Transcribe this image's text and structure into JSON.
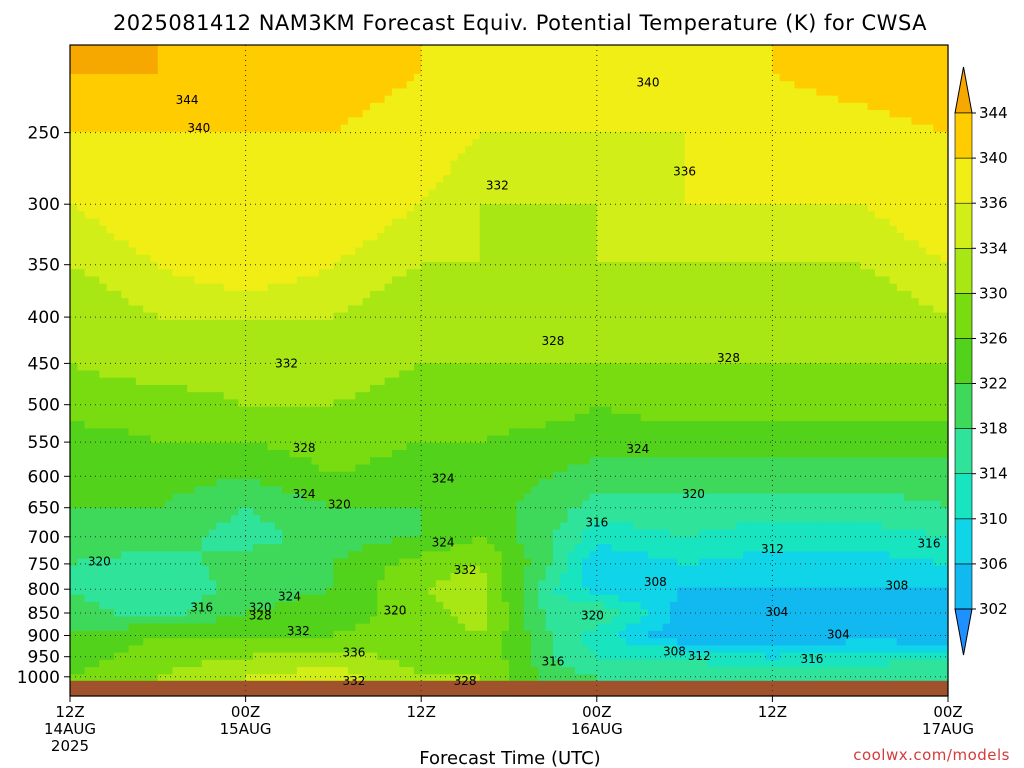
{
  "chart_data": {
    "type": "heatmap",
    "title": "2025081412 NAM3KM Forecast Equiv. Potential Temperature (K) for CWSA",
    "xlabel": "Forecast Time (UTC)",
    "ylabel": "",
    "y_axis": {
      "scale": "log",
      "unit": "hPa",
      "inverted": true,
      "range": [
        1050,
        200
      ],
      "ticks": [
        250,
        300,
        350,
        400,
        450,
        500,
        550,
        600,
        650,
        700,
        750,
        800,
        850,
        900,
        950,
        1000
      ]
    },
    "x_axis": {
      "unit": "hours from 2025-08-14 12Z",
      "range": [
        0,
        60
      ],
      "ticks": [
        {
          "hour": 0,
          "lines": [
            "12Z",
            "14AUG",
            "2025"
          ]
        },
        {
          "hour": 12,
          "lines": [
            "00Z",
            "15AUG"
          ]
        },
        {
          "hour": 24,
          "lines": [
            "12Z"
          ]
        },
        {
          "hour": 36,
          "lines": [
            "00Z",
            "16AUG"
          ]
        },
        {
          "hour": 48,
          "lines": [
            "12Z"
          ]
        },
        {
          "hour": 60,
          "lines": [
            "00Z",
            "17AUG"
          ]
        }
      ]
    },
    "grid": true,
    "colorbar": {
      "unit": "K",
      "levels": [
        302,
        306,
        310,
        314,
        318,
        322,
        326,
        330,
        334,
        336,
        340,
        344
      ],
      "colors": [
        "#1e90ff",
        "#12b9f0",
        "#10d4e8",
        "#18e4c0",
        "#2fe39a",
        "#3ed95a",
        "#52d21a",
        "#78dc10",
        "#a8e614",
        "#d2ee18",
        "#f0ee14",
        "#ffcc00",
        "#f6a800"
      ]
    },
    "surface_band": {
      "label": "ground",
      "color": "#a0522d"
    },
    "estimated_profiles": {
      "levels_hPa": [
        1000,
        950,
        900,
        850,
        800,
        750,
        700,
        650,
        600,
        550,
        500,
        450,
        400,
        350,
        300,
        250,
        215
      ],
      "columns": [
        {
          "hour": 0,
          "theta_e": [
            326,
            324,
            322,
            320,
            318,
            318,
            321,
            322,
            323,
            324,
            328,
            330,
            332,
            334,
            336,
            340,
            344
          ]
        },
        {
          "hour": 6,
          "theta_e": [
            330,
            328,
            326,
            316,
            314,
            316,
            320,
            322,
            324,
            326,
            328,
            332,
            334,
            336,
            338,
            340,
            344
          ]
        },
        {
          "hour": 12,
          "theta_e": [
            334,
            330,
            326,
            322,
            320,
            320,
            316,
            318,
            322,
            326,
            330,
            332,
            334,
            338,
            340,
            340,
            343
          ]
        },
        {
          "hour": 18,
          "theta_e": [
            336,
            332,
            326,
            324,
            322,
            322,
            320,
            322,
            326,
            328,
            330,
            332,
            334,
            336,
            338,
            340,
            342
          ]
        },
        {
          "hour": 24,
          "theta_e": [
            330,
            328,
            328,
            328,
            330,
            328,
            322,
            322,
            324,
            326,
            328,
            330,
            332,
            334,
            336,
            338,
            340
          ]
        },
        {
          "hour": 28,
          "theta_e": [
            330,
            330,
            330,
            332,
            332,
            330,
            326,
            324,
            324,
            326,
            328,
            330,
            332,
            334,
            334,
            336,
            338
          ]
        },
        {
          "hour": 33,
          "theta_e": [
            320,
            318,
            318,
            316,
            314,
            318,
            318,
            320,
            322,
            324,
            328,
            330,
            332,
            332,
            334,
            336,
            338
          ]
        },
        {
          "hour": 36,
          "theta_e": [
            318,
            314,
            312,
            318,
            308,
            306,
            312,
            316,
            320,
            324,
            326,
            330,
            332,
            334,
            334,
            336,
            338
          ]
        },
        {
          "hour": 42,
          "theta_e": [
            316,
            314,
            302,
            304,
            306,
            310,
            314,
            316,
            320,
            324,
            328,
            330,
            332,
            334,
            336,
            336,
            338
          ]
        },
        {
          "hour": 48,
          "theta_e": [
            316,
            310,
            302,
            304,
            306,
            308,
            312,
            316,
            320,
            324,
            328,
            330,
            332,
            334,
            336,
            338,
            340
          ]
        },
        {
          "hour": 54,
          "theta_e": [
            316,
            312,
            304,
            302,
            306,
            308,
            312,
            316,
            320,
            324,
            328,
            330,
            332,
            334,
            336,
            338,
            342
          ]
        },
        {
          "hour": 60,
          "theta_e": [
            318,
            314,
            302,
            302,
            306,
            310,
            314,
            318,
            320,
            324,
            328,
            330,
            334,
            336,
            338,
            340,
            344
          ]
        }
      ]
    },
    "contour_labels": [
      {
        "text": "344",
        "hour": 8,
        "p": 230
      },
      {
        "text": "340",
        "hour": 8.8,
        "p": 247
      },
      {
        "text": "340",
        "hour": 39.5,
        "p": 220
      },
      {
        "text": "336",
        "hour": 42,
        "p": 276
      },
      {
        "text": "332",
        "hour": 29.2,
        "p": 286
      },
      {
        "text": "332",
        "hour": 14.8,
        "p": 450
      },
      {
        "text": "328",
        "hour": 33,
        "p": 425
      },
      {
        "text": "328",
        "hour": 45,
        "p": 444
      },
      {
        "text": "328",
        "hour": 16,
        "p": 558
      },
      {
        "text": "324",
        "hour": 38.8,
        "p": 560
      },
      {
        "text": "324",
        "hour": 25.5,
        "p": 603
      },
      {
        "text": "324",
        "hour": 16,
        "p": 628
      },
      {
        "text": "320",
        "hour": 18.4,
        "p": 645
      },
      {
        "text": "320",
        "hour": 42.6,
        "p": 628
      },
      {
        "text": "316",
        "hour": 36,
        "p": 675
      },
      {
        "text": "312",
        "hour": 48,
        "p": 722
      },
      {
        "text": "316",
        "hour": 58.7,
        "p": 712
      },
      {
        "text": "324",
        "hour": 25.5,
        "p": 710
      },
      {
        "text": "320",
        "hour": 2,
        "p": 745
      },
      {
        "text": "332",
        "hour": 27,
        "p": 762
      },
      {
        "text": "308",
        "hour": 40,
        "p": 785
      },
      {
        "text": "308",
        "hour": 56.5,
        "p": 792
      },
      {
        "text": "324",
        "hour": 15,
        "p": 815
      },
      {
        "text": "316",
        "hour": 9,
        "p": 838
      },
      {
        "text": "320",
        "hour": 13,
        "p": 838
      },
      {
        "text": "328",
        "hour": 13,
        "p": 855
      },
      {
        "text": "320",
        "hour": 22.2,
        "p": 845
      },
      {
        "text": "320",
        "hour": 35.7,
        "p": 855
      },
      {
        "text": "304",
        "hour": 48.3,
        "p": 848
      },
      {
        "text": "332",
        "hour": 15.6,
        "p": 890
      },
      {
        "text": "304",
        "hour": 52.5,
        "p": 898
      },
      {
        "text": "308",
        "hour": 41.3,
        "p": 937
      },
      {
        "text": "312",
        "hour": 43,
        "p": 948
      },
      {
        "text": "316",
        "hour": 50.7,
        "p": 955
      },
      {
        "text": "336",
        "hour": 19.4,
        "p": 940
      },
      {
        "text": "316",
        "hour": 33,
        "p": 962
      },
      {
        "text": "332",
        "hour": 19.4,
        "p": 1010
      },
      {
        "text": "328",
        "hour": 27,
        "p": 1010
      }
    ]
  },
  "credit": "coolwx.com/models"
}
